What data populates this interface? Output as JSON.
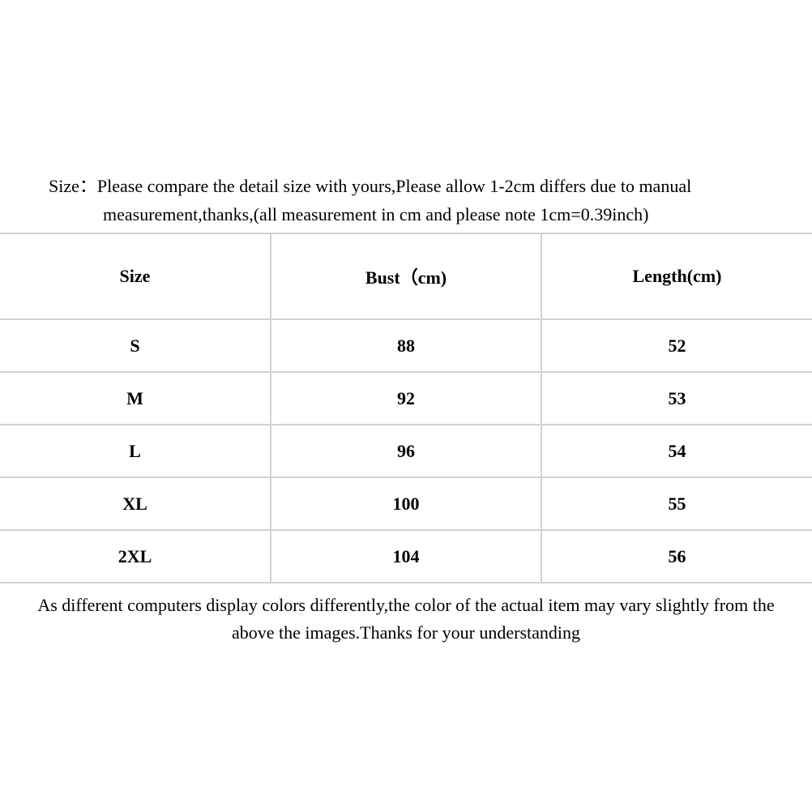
{
  "intro": {
    "line1": "Size：Please compare the detail size with yours,Please allow 1-2cm differs due to manual",
    "line2": "measurement,thanks,(all measurement in cm and please note 1cm=0.39inch)"
  },
  "table": {
    "headers": [
      "Size",
      "Bust（cm)",
      "Length(cm)"
    ],
    "rows": [
      [
        "S",
        "88",
        "52"
      ],
      [
        "M",
        "92",
        "53"
      ],
      [
        "L",
        "96",
        "54"
      ],
      [
        "XL",
        "100",
        "55"
      ],
      [
        "2XL",
        "104",
        "56"
      ]
    ]
  },
  "footer": {
    "line1": "As different computers display colors differently,the color of the actual item may vary slightly from the",
    "line2": "above the images.Thanks for your understanding"
  }
}
